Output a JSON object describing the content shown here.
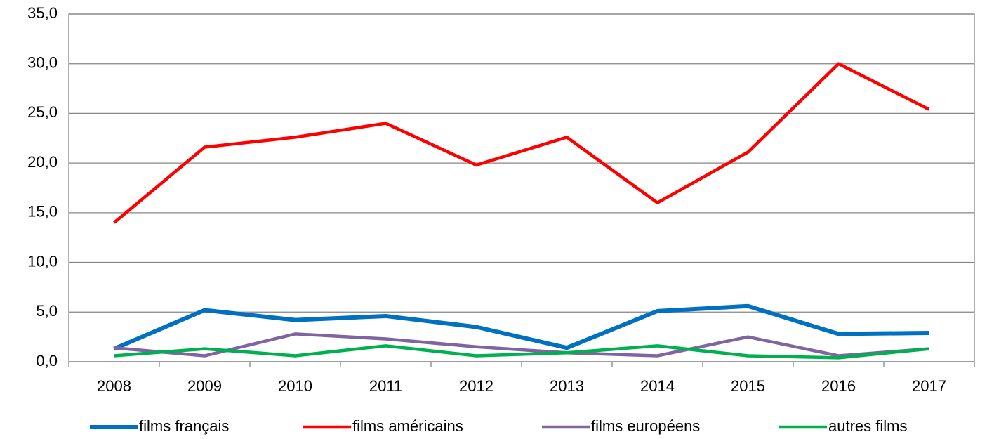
{
  "chart_data": {
    "type": "line",
    "categories": [
      "2008",
      "2009",
      "2010",
      "2011",
      "2012",
      "2013",
      "2014",
      "2015",
      "2016",
      "2017"
    ],
    "series": [
      {
        "name": "films français",
        "color": "#0070c0",
        "values": [
          1.3,
          5.2,
          4.2,
          4.6,
          3.5,
          1.4,
          5.1,
          5.6,
          2.8,
          2.9
        ]
      },
      {
        "name": "films américains",
        "color": "#ff0000",
        "values": [
          14.0,
          21.6,
          22.6,
          24.0,
          19.8,
          22.6,
          16.0,
          21.1,
          30.0,
          25.4
        ]
      },
      {
        "name": "films européens",
        "color": "#8064a2",
        "values": [
          1.4,
          0.6,
          2.8,
          2.3,
          1.5,
          0.9,
          0.6,
          2.5,
          0.6,
          1.3
        ]
      },
      {
        "name": "autres films",
        "color": "#00b050",
        "values": [
          0.6,
          1.3,
          0.6,
          1.6,
          0.6,
          0.9,
          1.6,
          0.6,
          0.4,
          1.3
        ]
      }
    ],
    "ylim": [
      0,
      35
    ],
    "yticks": [
      {
        "value": 0,
        "label": "0,0"
      },
      {
        "value": 5,
        "label": "5,0"
      },
      {
        "value": 10,
        "label": "10,0"
      },
      {
        "value": 15,
        "label": "15,0"
      },
      {
        "value": 20,
        "label": "20,0"
      },
      {
        "value": 25,
        "label": "25,0"
      },
      {
        "value": 30,
        "label": "30,0"
      },
      {
        "value": 35,
        "label": "35,0"
      }
    ],
    "grid": true,
    "legend": "bottom"
  }
}
